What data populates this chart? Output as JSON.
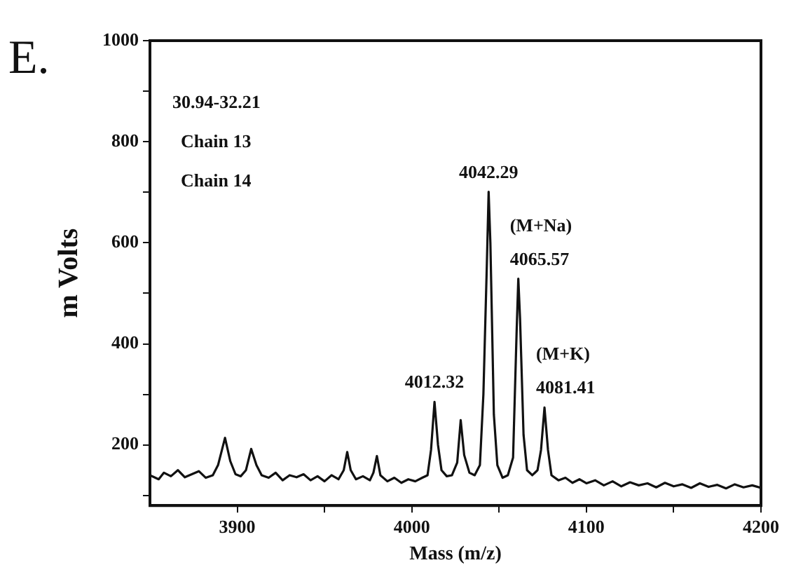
{
  "chart_data": {
    "type": "line",
    "title": "E.",
    "xlabel": "Mass (m/z)",
    "ylabel": "m Volts",
    "xlim": [
      3850,
      4200
    ],
    "ylim": [
      80,
      1000
    ],
    "xticks": [
      3900,
      {
        "value": 3950,
        "label": null
      },
      4000,
      {
        "value": 4050,
        "label": null
      },
      4100,
      {
        "value": 4150,
        "label": null
      },
      4200
    ],
    "yticks": [
      {
        "value": 100,
        "label": null
      },
      200,
      {
        "value": 300,
        "label": null
      },
      400,
      {
        "value": 500,
        "label": null
      },
      600,
      {
        "value": 700,
        "label": null
      },
      800,
      {
        "value": 900,
        "label": null
      },
      1000
    ],
    "grid": false,
    "legend": false,
    "marker": "none",
    "line_style": "solid",
    "x": [
      3850,
      3855,
      3858,
      3862,
      3866,
      3870,
      3874,
      3878,
      3882,
      3886,
      3889,
      3893,
      3896,
      3899,
      3902,
      3905,
      3908,
      3911,
      3914,
      3918,
      3922,
      3926,
      3930,
      3934,
      3938,
      3942,
      3946,
      3950,
      3954,
      3958,
      3961,
      3963,
      3965,
      3968,
      3972,
      3976,
      3978,
      3980,
      3982,
      3986,
      3990,
      3994,
      3998,
      4002,
      4006,
      4009,
      4011,
      4013,
      4015,
      4017,
      4020,
      4023,
      4026,
      4028,
      4030,
      4033,
      4036,
      4039,
      4041,
      4043,
      4044,
      4045,
      4047,
      4049,
      4052,
      4055,
      4058,
      4060,
      4061,
      4062,
      4064,
      4066,
      4069,
      4072,
      4074,
      4076,
      4078,
      4080,
      4084,
      4088,
      4092,
      4096,
      4100,
      4105,
      4110,
      4115,
      4120,
      4125,
      4130,
      4135,
      4140,
      4145,
      4150,
      4155,
      4160,
      4165,
      4170,
      4175,
      4180,
      4185,
      4190,
      4195,
      4200
    ],
    "series": [
      {
        "color": "#111111",
        "values": [
          140,
          132,
          145,
          138,
          150,
          136,
          142,
          148,
          135,
          140,
          160,
          214,
          168,
          142,
          138,
          150,
          192,
          160,
          140,
          135,
          145,
          130,
          140,
          136,
          142,
          130,
          138,
          128,
          140,
          132,
          150,
          186,
          150,
          132,
          138,
          130,
          145,
          178,
          140,
          128,
          135,
          125,
          132,
          128,
          135,
          140,
          190,
          285,
          200,
          150,
          138,
          140,
          165,
          249,
          180,
          145,
          140,
          160,
          300,
          560,
          701,
          600,
          260,
          160,
          135,
          140,
          175,
          420,
          529,
          450,
          220,
          150,
          140,
          150,
          190,
          274,
          190,
          140,
          130,
          135,
          125,
          132,
          124,
          130,
          120,
          128,
          118,
          126,
          120,
          124,
          116,
          125,
          118,
          122,
          115,
          124,
          117,
          121,
          114,
          122,
          116,
          120,
          115
        ]
      }
    ],
    "annotations": [
      "30.94-32.21",
      "Chain 13",
      "Chain 14",
      {
        "text": "4042.29",
        "x": 4044,
        "y": 701
      },
      {
        "text": "(M+Na)\n4065.57",
        "x": 4061,
        "y": 529
      },
      {
        "text": "(M+K)\n4081.41",
        "x": 4076,
        "y": 274
      },
      {
        "text": "4012.32",
        "x": 4013,
        "y": 285
      }
    ]
  }
}
